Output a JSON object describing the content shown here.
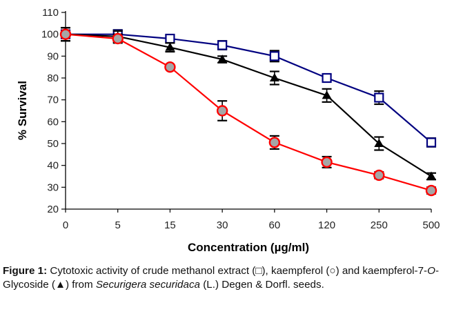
{
  "chart_data": {
    "type": "line",
    "title": "",
    "xlabel": "Concentration (µg/ml)",
    "ylabel": "% Survival",
    "categories": [
      "0",
      "5",
      "15",
      "30",
      "60",
      "120",
      "250",
      "500"
    ],
    "ylim": [
      20,
      110
    ],
    "yticks": [
      20,
      30,
      40,
      50,
      60,
      70,
      80,
      90,
      100,
      110
    ],
    "grid": false,
    "legend": "none (described in caption)",
    "series": [
      {
        "name": "crude methanol extract",
        "marker": "open-square",
        "color": "#000080",
        "values": [
          100,
          100,
          98,
          95,
          90,
          80,
          71,
          50.5
        ],
        "errors": [
          3,
          2,
          1.5,
          2,
          2.5,
          1.5,
          3,
          2
        ]
      },
      {
        "name": "kaempferol-7-O-Glycoside",
        "marker": "filled-triangle",
        "color": "#000000",
        "values": [
          100,
          99,
          94,
          88.5,
          80,
          72,
          50,
          35
        ],
        "errors": [
          3,
          2.5,
          2,
          1.5,
          3,
          3,
          3,
          1.5
        ]
      },
      {
        "name": "kaempferol",
        "marker": "gray-circle-red-outline",
        "color": "#ff0000",
        "values": [
          100,
          98,
          85,
          65,
          50.5,
          41.5,
          35.5,
          28.5
        ],
        "errors": [
          3,
          2,
          1,
          4.5,
          3,
          2.5,
          1.5,
          1.5
        ]
      }
    ]
  },
  "caption": {
    "label": "Figure 1:",
    "part1": " Cytotoxic activity of crude methanol extract (□), kaempferol (○) and kaempferol-7-",
    "italic1": "O",
    "part2": "-Glycoside (▲) from ",
    "italic2": "Securigera securidaca",
    "part3": " (L.) Degen & Dorfl. seeds."
  }
}
